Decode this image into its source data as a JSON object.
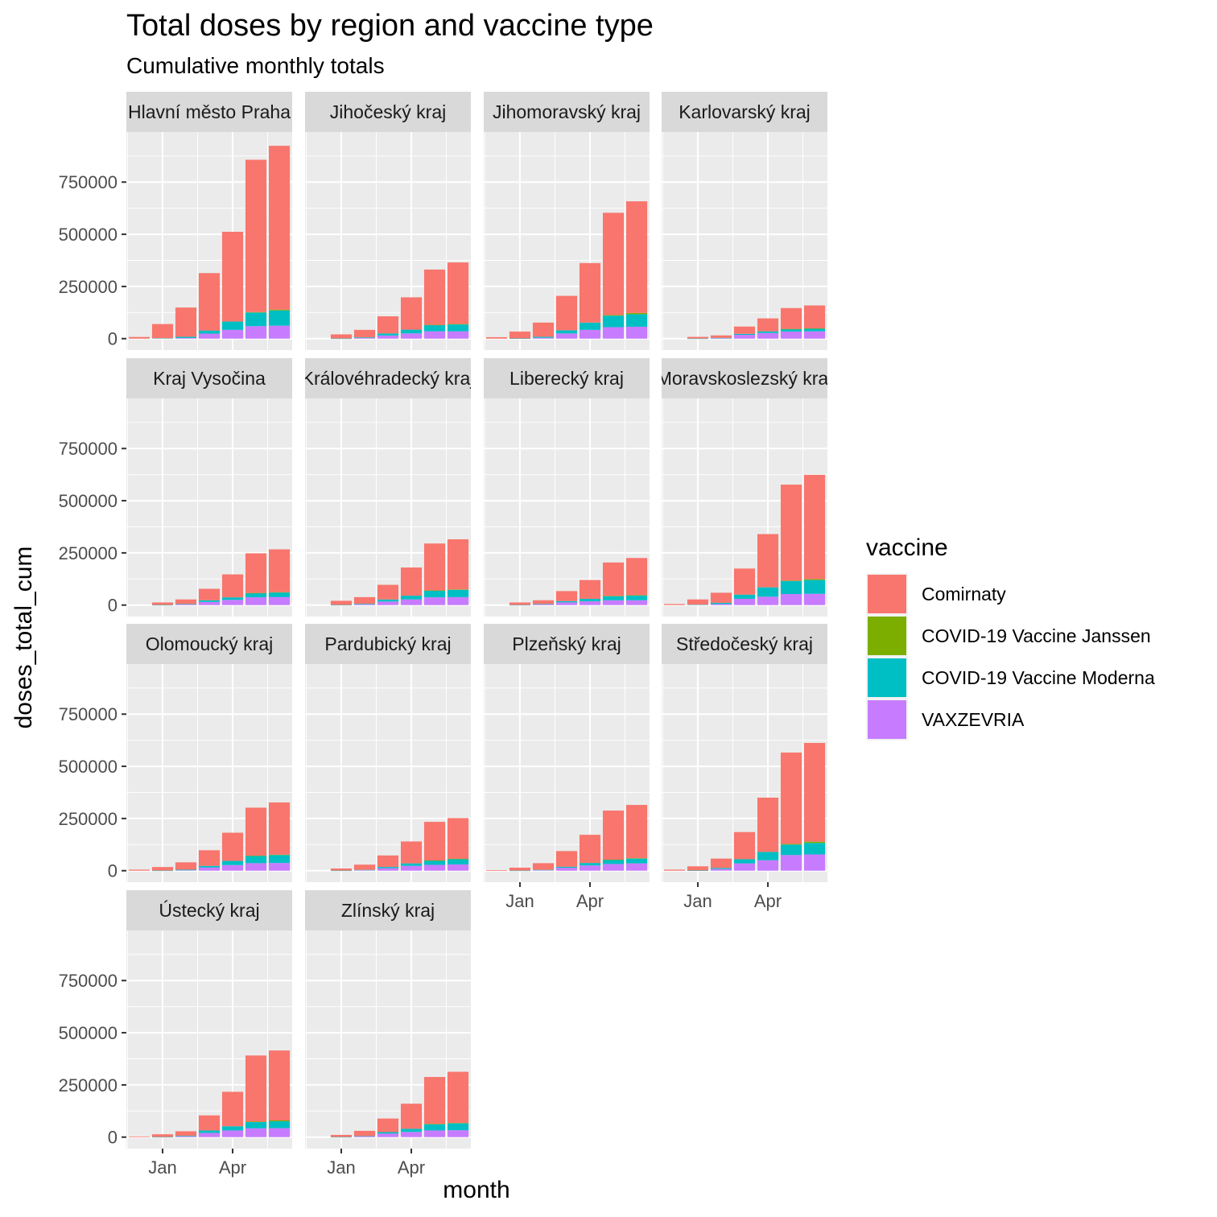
{
  "chart_data": {
    "type": "bar",
    "stacked": true,
    "title": "Total doses by region and vaccine type",
    "subtitle": "Cumulative monthly totals",
    "xlabel": "month",
    "ylabel": "doses_total_cum",
    "ylim": [
      0,
      1000000
    ],
    "yticks": [
      0,
      250000,
      500000,
      750000
    ],
    "xticks": [
      "Jan",
      "Apr"
    ],
    "months": [
      "2020-12",
      "2021-01",
      "2021-02",
      "2021-03",
      "2021-04",
      "2021-05",
      "2021-06"
    ],
    "legend": {
      "title": "vaccine",
      "position": "right"
    },
    "grid": true,
    "series": [
      {
        "name": "Comirnaty",
        "color": "#F8766D"
      },
      {
        "name": "COVID-19 Vaccine Janssen",
        "color": "#7CAE00"
      },
      {
        "name": "COVID-19 Vaccine Moderna",
        "color": "#00BFC4"
      },
      {
        "name": "VAXZEVRIA",
        "color": "#C77CFF"
      }
    ],
    "panels": [
      {
        "region": "Hlavní město Praha",
        "strip_label": "Hlavní město Praha",
        "values": {
          "Comirnaty": [
            8000,
            68000,
            140000,
            275000,
            430000,
            730000,
            785000
          ],
          "COVID-19 Vaccine Janssen": [
            0,
            0,
            0,
            0,
            0,
            2000,
            4000
          ],
          "COVID-19 Vaccine Moderna": [
            0,
            2000,
            6000,
            15000,
            40000,
            65000,
            73000
          ],
          "VAXZEVRIA": [
            0,
            0,
            3000,
            24000,
            42000,
            60000,
            62000
          ]
        }
      },
      {
        "region": "Jihočeský kraj",
        "strip_label": "Jihočeský kraj",
        "values": {
          "Comirnaty": [
            0,
            20000,
            36000,
            82000,
            155000,
            265000,
            295000
          ],
          "COVID-19 Vaccine Janssen": [
            0,
            0,
            0,
            0,
            0,
            1000,
            2000
          ],
          "COVID-19 Vaccine Moderna": [
            0,
            500,
            3000,
            10000,
            18000,
            30000,
            33000
          ],
          "VAXZEVRIA": [
            0,
            0,
            3000,
            15000,
            25000,
            35000,
            35000
          ]
        }
      },
      {
        "region": "Jihomoravský kraj",
        "strip_label": "Jihomoravský kraj",
        "values": {
          "Comirnaty": [
            7000,
            33000,
            68000,
            165000,
            285000,
            490000,
            535000
          ],
          "COVID-19 Vaccine Janssen": [
            0,
            0,
            0,
            0,
            0,
            3000,
            6000
          ],
          "COVID-19 Vaccine Moderna": [
            0,
            1000,
            5000,
            15000,
            35000,
            55000,
            60000
          ],
          "VAXZEVRIA": [
            0,
            0,
            4000,
            25000,
            42000,
            55000,
            57000
          ]
        }
      },
      {
        "region": "Karlovarský kraj",
        "strip_label": "Karlovarský kraj",
        "values": {
          "Comirnaty": [
            0,
            8000,
            12000,
            35000,
            62000,
            100000,
            110000
          ],
          "COVID-19 Vaccine Janssen": [
            0,
            0,
            0,
            0,
            0,
            500,
            1000
          ],
          "COVID-19 Vaccine Moderna": [
            0,
            500,
            2000,
            5000,
            8000,
            12000,
            13000
          ],
          "VAXZEVRIA": [
            0,
            0,
            1500,
            18000,
            27000,
            34000,
            35000
          ]
        }
      },
      {
        "region": "Kraj Vysočina",
        "strip_label": "Kraj Vysočina",
        "values": {
          "Comirnaty": [
            0,
            12000,
            22000,
            55000,
            110000,
            190000,
            205000
          ],
          "COVID-19 Vaccine Janssen": [
            0,
            0,
            0,
            0,
            0,
            1000,
            2000
          ],
          "COVID-19 Vaccine Moderna": [
            0,
            500,
            2000,
            8000,
            12000,
            20000,
            22000
          ],
          "VAXZEVRIA": [
            0,
            0,
            3000,
            15000,
            25000,
            37000,
            38000
          ]
        }
      },
      {
        "region": "Královéhradecký kraj",
        "strip_label": "Královéhradecký kraj",
        "values": {
          "Comirnaty": [
            0,
            20000,
            32000,
            70000,
            135000,
            225000,
            240000
          ],
          "COVID-19 Vaccine Janssen": [
            0,
            0,
            0,
            0,
            0,
            1000,
            2000
          ],
          "COVID-19 Vaccine Moderna": [
            0,
            500,
            3000,
            10000,
            18000,
            32000,
            35000
          ],
          "VAXZEVRIA": [
            0,
            0,
            3000,
            17000,
            27000,
            37000,
            38000
          ]
        }
      },
      {
        "region": "Liberecký kraj",
        "strip_label": "Liberecký kraj",
        "values": {
          "Comirnaty": [
            0,
            12000,
            18000,
            48000,
            90000,
            160000,
            178000
          ],
          "COVID-19 Vaccine Janssen": [
            0,
            0,
            0,
            0,
            0,
            1000,
            1500
          ],
          "COVID-19 Vaccine Moderna": [
            0,
            500,
            2000,
            6000,
            12000,
            20000,
            23000
          ],
          "VAXZEVRIA": [
            0,
            0,
            3000,
            13000,
            18000,
            23000,
            23000
          ]
        }
      },
      {
        "region": "Moravskoslezský kraj",
        "strip_label": "Moravskoslezský kraj",
        "values": {
          "Comirnaty": [
            5000,
            25000,
            48000,
            125000,
            255000,
            460000,
            500000
          ],
          "COVID-19 Vaccine Janssen": [
            0,
            0,
            0,
            0,
            0,
            2000,
            4000
          ],
          "COVID-19 Vaccine Moderna": [
            0,
            2000,
            6000,
            20000,
            45000,
            62000,
            66000
          ],
          "VAXZEVRIA": [
            0,
            0,
            5000,
            30000,
            40000,
            53000,
            54000
          ]
        }
      },
      {
        "region": "Olomoucký kraj",
        "strip_label": "Olomoucký kraj",
        "values": {
          "Comirnaty": [
            5000,
            17000,
            35000,
            75000,
            135000,
            230000,
            250000
          ],
          "COVID-19 Vaccine Janssen": [
            0,
            0,
            0,
            0,
            0,
            1000,
            2000
          ],
          "COVID-19 Vaccine Moderna": [
            0,
            500,
            3000,
            8000,
            20000,
            35000,
            38000
          ],
          "VAXZEVRIA": [
            0,
            0,
            2000,
            15000,
            27000,
            36000,
            37000
          ]
        }
      },
      {
        "region": "Pardubický kraj",
        "strip_label": "Pardubický kraj",
        "values": {
          "Comirnaty": [
            0,
            10000,
            25000,
            55000,
            105000,
            185000,
            195000
          ],
          "COVID-19 Vaccine Janssen": [
            0,
            0,
            0,
            0,
            0,
            1000,
            2000
          ],
          "COVID-19 Vaccine Moderna": [
            0,
            500,
            2000,
            6000,
            12000,
            20000,
            25000
          ],
          "VAXZEVRIA": [
            0,
            0,
            2000,
            12000,
            23000,
            28000,
            30000
          ]
        }
      },
      {
        "region": "Plzeňský kraj",
        "strip_label": "Plzeňský kraj",
        "values": {
          "Comirnaty": [
            3000,
            14000,
            32000,
            75000,
            135000,
            235000,
            255000
          ],
          "COVID-19 Vaccine Janssen": [
            0,
            0,
            0,
            0,
            0,
            1000,
            2000
          ],
          "COVID-19 Vaccine Moderna": [
            0,
            500,
            2000,
            5000,
            12000,
            20000,
            23000
          ],
          "VAXZEVRIA": [
            0,
            0,
            2000,
            14000,
            25000,
            32000,
            35000
          ]
        }
      },
      {
        "region": "Středočeský kraj",
        "strip_label": "Středočeský kraj",
        "values": {
          "Comirnaty": [
            5000,
            20000,
            45000,
            130000,
            260000,
            438000,
            473000
          ],
          "COVID-19 Vaccine Janssen": [
            0,
            0,
            0,
            0,
            0,
            3000,
            6000
          ],
          "COVID-19 Vaccine Moderna": [
            0,
            1000,
            5000,
            20000,
            40000,
            50000,
            55000
          ],
          "VAXZEVRIA": [
            0,
            0,
            8000,
            35000,
            50000,
            75000,
            78000
          ]
        }
      },
      {
        "region": "Ústecký kraj",
        "strip_label": "Ústecký kraj",
        "values": {
          "Comirnaty": [
            3000,
            13000,
            22000,
            72000,
            165000,
            317000,
            335000
          ],
          "COVID-19 Vaccine Janssen": [
            0,
            0,
            0,
            0,
            0,
            2000,
            4000
          ],
          "COVID-19 Vaccine Moderna": [
            0,
            500,
            3000,
            12000,
            20000,
            30000,
            33000
          ],
          "VAXZEVRIA": [
            0,
            0,
            3000,
            20000,
            32000,
            42000,
            43000
          ]
        }
      },
      {
        "region": "Zlínský kraj",
        "strip_label": "Zlínský kraj",
        "values": {
          "Comirnaty": [
            0,
            10000,
            25000,
            65000,
            120000,
            225000,
            245000
          ],
          "COVID-19 Vaccine Janssen": [
            0,
            0,
            0,
            0,
            0,
            1000,
            2000
          ],
          "COVID-19 Vaccine Moderna": [
            0,
            500,
            2000,
            7000,
            15000,
            30000,
            33000
          ],
          "VAXZEVRIA": [
            0,
            0,
            3000,
            17000,
            25000,
            32000,
            33000
          ]
        }
      }
    ]
  }
}
